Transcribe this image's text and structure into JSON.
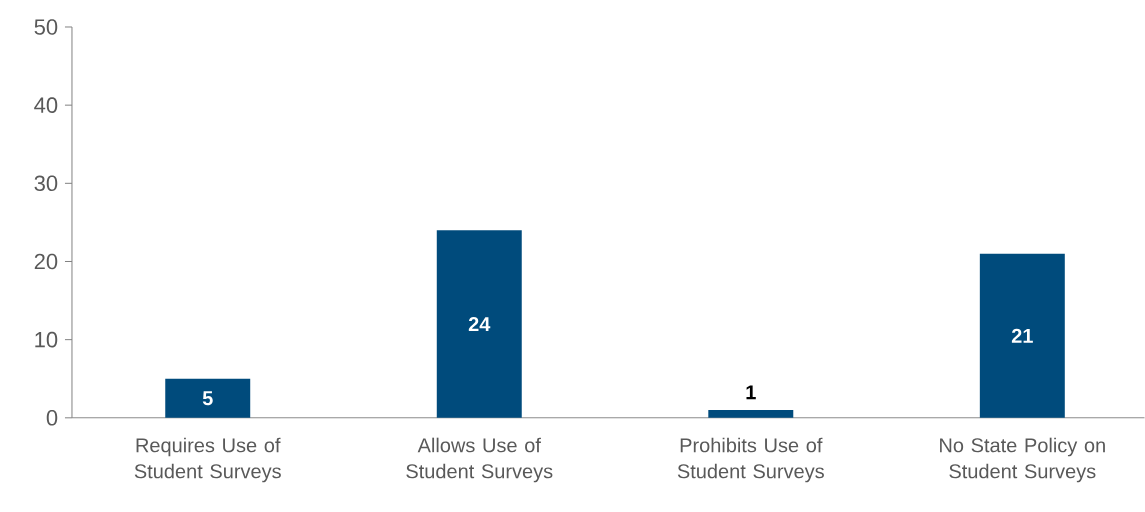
{
  "chart_data": {
    "type": "bar",
    "categories": [
      "Requires Use of Student Surveys",
      "Allows Use of Student Surveys",
      "Prohibits Use of Student Surveys",
      "No State Policy on Student Surveys"
    ],
    "values": [
      5,
      24,
      1,
      21
    ],
    "color": "#004b7c",
    "ylim": [
      0,
      50
    ],
    "yticks": [
      0,
      10,
      20,
      30,
      40,
      50
    ],
    "data_labels": true,
    "grid": false
  }
}
